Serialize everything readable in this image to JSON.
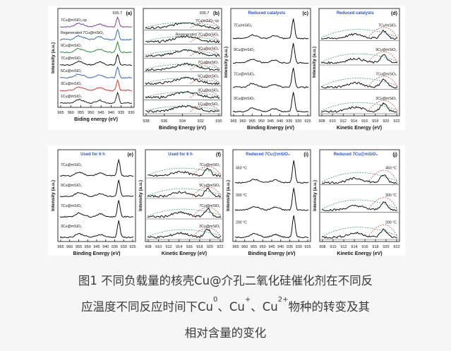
{
  "figure": {
    "panels": [
      {
        "id": "(a)",
        "kind": "xps",
        "ylabel": "Intensity (a.u.)",
        "xlabel": "Biding energy (eV)",
        "xticks": [
          "965",
          "960",
          "955",
          "950",
          "945",
          "940",
          "935",
          "930"
        ],
        "peak_label": "935.7",
        "labels": [
          "7Cu@mSiO2-cp",
          "Regenerated 7Cu@mSiO2",
          "9Cu@mSiO2",
          "7Cu@mSiO2",
          "5Cu@mSiO2",
          "3Cu@mSiO2",
          "1Cu@mSiO2"
        ],
        "colors": [
          "#7e3fa0",
          "#2c6fb3",
          "#2d8a3c",
          "#111111",
          "#3a5fbf",
          "#d63a2c",
          "#222222"
        ]
      },
      {
        "id": "(b)",
        "kind": "fit",
        "ylabel": "",
        "xlabel": "Binding Energy (eV)",
        "xticks": [
          "938",
          "936",
          "934",
          "932",
          "930"
        ],
        "peak_label": "935.7",
        "labels": [
          "7Cu/mSiO2-cp",
          "Regenerated 7Cu@mSiO2",
          "9Cu@mSiO2",
          "7Cu@mSiO2",
          "5Cu@mSiO2",
          "3Cu@mSiO2",
          "1Cu@mSiO2"
        ]
      },
      {
        "id": "(c)",
        "kind": "xps",
        "ylabel": "Intensity (a.u.)",
        "xlabel": "Binding Energy (eV)",
        "xticks": [
          "965",
          "960",
          "955",
          "950",
          "945",
          "940",
          "935",
          "930",
          "925"
        ],
        "subtitle": "Reduced catalysts",
        "labels": [
          "7Cu/mSiO2",
          "9Cu@mSiO2",
          "7Cu@mSiO2",
          "3Cu@mSiO2"
        ]
      },
      {
        "id": "(d)",
        "kind": "auger",
        "ylabel": "Intensity (a.u.)",
        "xlabel": "Kinetic Energy (eV)",
        "xticks": [
          "908",
          "910",
          "912",
          "914",
          "916",
          "918",
          "920",
          "922"
        ],
        "subtitle": "Reduced catalysts",
        "labels": [
          "7Cu/mSiO2",
          "9Cu@mSiO2",
          "7Cu@mSiO2",
          "3Cu@mSiO2"
        ]
      },
      {
        "id": "(e)",
        "kind": "xps",
        "ylabel": "Intensity (a.u.)",
        "xlabel": "Binding Energy (eV)",
        "xticks": [
          "965",
          "960",
          "955",
          "950",
          "945",
          "940",
          "935",
          "930",
          "925"
        ],
        "subtitle": "Used for 6 h",
        "labels": [
          "7Cu@mSiO2",
          "9Cu@mSiO2",
          "7Cu@mSiO2",
          "3Cu@mSiO2"
        ]
      },
      {
        "id": "(f)",
        "kind": "auger",
        "ylabel": "Intensity (a.u.)",
        "xlabel": "Kinetic Energy (eV)",
        "xticks": [
          "908",
          "910",
          "912",
          "914",
          "916",
          "918",
          "920",
          "922"
        ],
        "subtitle": "Used for 6 h",
        "labels": [
          "7Cu@mSiO2",
          "9Cu@mSiO2",
          "7Cu@mSiO2",
          "3Cu@mSiO2"
        ]
      },
      {
        "id": "(i)",
        "kind": "xps",
        "ylabel": "Intensity (a.u.)",
        "xlabel": "Binding Energy (eV)",
        "xticks": [
          "965",
          "960",
          "955",
          "950",
          "945",
          "940",
          "935",
          "930",
          "925"
        ],
        "subtitle": "Reduced 7Cu@mSiO2",
        "labels": [
          "450 °C",
          "300 °C",
          "200 °C"
        ]
      },
      {
        "id": "(j)",
        "kind": "auger",
        "ylabel": "Intensity (a.u.)",
        "xlabel": "Kinetic Energy (eV)",
        "xticks": [
          "908",
          "910",
          "912",
          "914",
          "916",
          "918",
          "920",
          "922"
        ],
        "subtitle": "Reduced 7Cu@mSiO2",
        "labels": [
          "450 °C",
          "300 °C",
          "200 °C"
        ]
      }
    ]
  },
  "caption": {
    "line1": "图1 不同负载量的核壳Cu@介孔二氧化硅催化剂在不同反",
    "line2_a": "应温度不同反应时间下Cu",
    "line2_sup1": "0",
    "line2_b": "、Cu",
    "line2_sup2": "+",
    "line2_c": "、Cu",
    "line2_sup3": "2+",
    "line2_d": "物种的转变及其",
    "line3": "相对含量的变化"
  },
  "colors": {
    "page": "#f6f6f6",
    "caption_text": "#3a3a3a",
    "panel_border": "#333333",
    "label_blue": "#2f55c9"
  }
}
